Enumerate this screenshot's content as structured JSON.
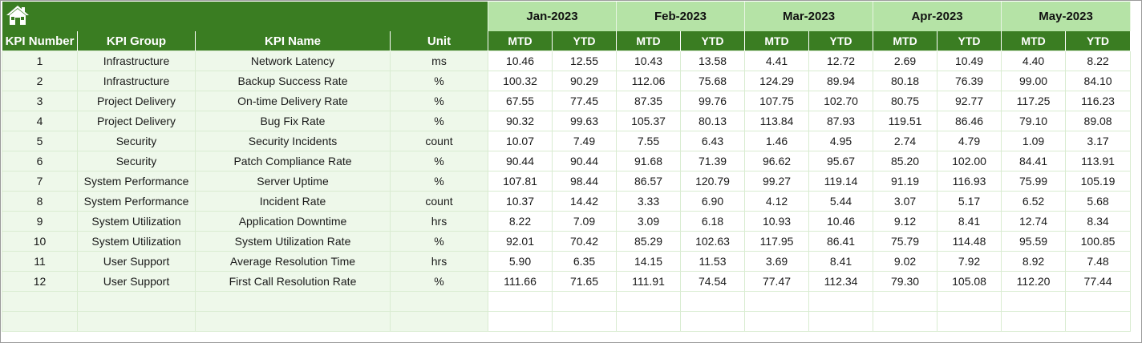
{
  "header": {
    "columns": [
      "KPI Number",
      "KPI Group",
      "KPI Name",
      "Unit"
    ],
    "months": [
      "Jan-2023",
      "Feb-2023",
      "Mar-2023",
      "Apr-2023",
      "May-2023"
    ],
    "sub_columns": [
      "MTD",
      "YTD"
    ]
  },
  "rows": [
    {
      "num": "1",
      "group": "Infrastructure",
      "name": "Network Latency",
      "unit": "ms",
      "values": [
        "10.46",
        "12.55",
        "10.43",
        "13.58",
        "4.41",
        "12.72",
        "2.69",
        "10.49",
        "4.40",
        "8.22"
      ]
    },
    {
      "num": "2",
      "group": "Infrastructure",
      "name": "Backup Success Rate",
      "unit": "%",
      "values": [
        "100.32",
        "90.29",
        "112.06",
        "75.68",
        "124.29",
        "89.94",
        "80.18",
        "76.39",
        "99.00",
        "84.10"
      ]
    },
    {
      "num": "3",
      "group": "Project Delivery",
      "name": "On-time Delivery Rate",
      "unit": "%",
      "values": [
        "67.55",
        "77.45",
        "87.35",
        "99.76",
        "107.75",
        "102.70",
        "80.75",
        "92.77",
        "117.25",
        "116.23"
      ]
    },
    {
      "num": "4",
      "group": "Project Delivery",
      "name": "Bug Fix Rate",
      "unit": "%",
      "values": [
        "90.32",
        "99.63",
        "105.37",
        "80.13",
        "113.84",
        "87.93",
        "119.51",
        "86.46",
        "79.10",
        "89.08"
      ]
    },
    {
      "num": "5",
      "group": "Security",
      "name": "Security Incidents",
      "unit": "count",
      "values": [
        "10.07",
        "7.49",
        "7.55",
        "6.43",
        "1.46",
        "4.95",
        "2.74",
        "4.79",
        "1.09",
        "3.17"
      ]
    },
    {
      "num": "6",
      "group": "Security",
      "name": "Patch Compliance Rate",
      "unit": "%",
      "values": [
        "90.44",
        "90.44",
        "91.68",
        "71.39",
        "96.62",
        "95.67",
        "85.20",
        "102.00",
        "84.41",
        "113.91"
      ]
    },
    {
      "num": "7",
      "group": "System Performance",
      "name": "Server Uptime",
      "unit": "%",
      "values": [
        "107.81",
        "98.44",
        "86.57",
        "120.79",
        "99.27",
        "119.14",
        "91.19",
        "116.93",
        "75.99",
        "105.19"
      ]
    },
    {
      "num": "8",
      "group": "System Performance",
      "name": "Incident Rate",
      "unit": "count",
      "values": [
        "10.37",
        "14.42",
        "3.33",
        "6.90",
        "4.12",
        "5.44",
        "3.07",
        "5.17",
        "6.52",
        "5.68"
      ]
    },
    {
      "num": "9",
      "group": "System Utilization",
      "name": "Application Downtime",
      "unit": "hrs",
      "values": [
        "8.22",
        "7.09",
        "3.09",
        "6.18",
        "10.93",
        "10.46",
        "9.12",
        "8.41",
        "12.74",
        "8.34"
      ]
    },
    {
      "num": "10",
      "group": "System Utilization",
      "name": "System Utilization Rate",
      "unit": "%",
      "values": [
        "92.01",
        "70.42",
        "85.29",
        "102.63",
        "117.95",
        "86.41",
        "75.79",
        "114.48",
        "95.59",
        "100.85"
      ]
    },
    {
      "num": "11",
      "group": "User Support",
      "name": "Average Resolution Time",
      "unit": "hrs",
      "values": [
        "5.90",
        "6.35",
        "14.15",
        "11.53",
        "3.69",
        "8.41",
        "9.02",
        "7.92",
        "8.92",
        "7.48"
      ]
    },
    {
      "num": "12",
      "group": "User Support",
      "name": "First Call Resolution Rate",
      "unit": "%",
      "values": [
        "111.66",
        "71.65",
        "111.91",
        "74.54",
        "77.47",
        "112.34",
        "79.30",
        "105.08",
        "112.20",
        "77.44"
      ]
    }
  ],
  "icons": {
    "home": "home-icon"
  },
  "colors": {
    "header_dark": "#3a7d22",
    "month_light": "#b5e3a6",
    "left_fill": "#eef8ea"
  }
}
